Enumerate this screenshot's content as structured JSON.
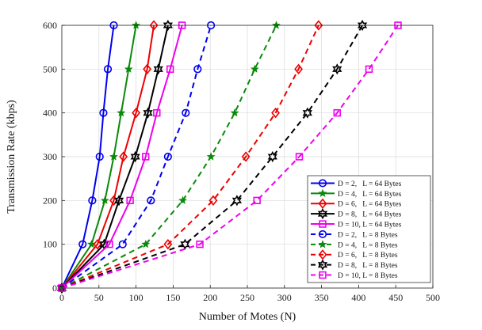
{
  "chart_data": {
    "type": "line",
    "title": "",
    "xlabel": "Number of Motes (N)",
    "ylabel": "Transmission Rate (kbps)",
    "xlim": [
      0,
      500
    ],
    "ylim": [
      0,
      600
    ],
    "xticks": [
      "0",
      "50",
      "100",
      "150",
      "200",
      "250",
      "300",
      "350",
      "400",
      "450",
      "500"
    ],
    "yticks": [
      "0",
      "100",
      "200",
      "300",
      "400",
      "500",
      "600"
    ],
    "grid": true,
    "legend_position": "bottom-right",
    "series": [
      {
        "name": "D = 2,   L = 64 Bytes",
        "color": "#0000ee",
        "marker": "circle",
        "dashed": false,
        "x": [
          0,
          28,
          41,
          51,
          56,
          62,
          70
        ],
        "y": [
          0,
          100,
          200,
          300,
          400,
          500,
          600
        ]
      },
      {
        "name": "D = 4,   L = 64 Bytes",
        "color": "#0a8a0a",
        "marker": "star",
        "dashed": false,
        "x": [
          0,
          40,
          58,
          70,
          80,
          90,
          100
        ],
        "y": [
          0,
          100,
          200,
          300,
          400,
          500,
          600
        ]
      },
      {
        "name": "D = 6,   L = 64 Bytes",
        "color": "#ee0000",
        "marker": "diamond",
        "dashed": false,
        "x": [
          0,
          48,
          70,
          83,
          100,
          115,
          124
        ],
        "y": [
          0,
          100,
          200,
          300,
          400,
          500,
          600
        ]
      },
      {
        "name": "D = 8,   L = 64 Bytes",
        "color": "#000000",
        "marker": "hexagram",
        "dashed": false,
        "x": [
          0,
          57,
          77,
          99,
          116,
          130,
          143
        ],
        "y": [
          0,
          100,
          200,
          300,
          400,
          500,
          600
        ]
      },
      {
        "name": "D = 10, L = 64 Bytes",
        "color": "#ee00ee",
        "marker": "square",
        "dashed": false,
        "x": [
          0,
          64,
          92,
          113,
          128,
          146,
          162
        ],
        "y": [
          0,
          100,
          200,
          300,
          400,
          500,
          600
        ]
      },
      {
        "name": "D = 2,   L = 8 Bytes",
        "color": "#0000ee",
        "marker": "circle",
        "dashed": true,
        "x": [
          0,
          82,
          120,
          143,
          167,
          183,
          201
        ],
        "y": [
          0,
          100,
          200,
          300,
          400,
          500,
          600
        ]
      },
      {
        "name": "D = 4,   L = 8 Bytes",
        "color": "#0a8a0a",
        "marker": "star",
        "dashed": true,
        "x": [
          0,
          113,
          163,
          201,
          233,
          260,
          289
        ],
        "y": [
          0,
          100,
          200,
          300,
          400,
          500,
          600
        ]
      },
      {
        "name": "D = 6,   L = 8 Bytes",
        "color": "#ee0000",
        "marker": "diamond",
        "dashed": true,
        "x": [
          0,
          143,
          204,
          248,
          288,
          319,
          346
        ],
        "y": [
          0,
          100,
          200,
          300,
          400,
          500,
          600
        ]
      },
      {
        "name": "D = 8,   L = 8 Bytes",
        "color": "#000000",
        "marker": "hexagram",
        "dashed": true,
        "x": [
          0,
          166,
          236,
          284,
          331,
          371,
          405
        ],
        "y": [
          0,
          100,
          200,
          300,
          400,
          500,
          600
        ]
      },
      {
        "name": "D = 10, L = 8 Bytes",
        "color": "#ee00ee",
        "marker": "square",
        "dashed": true,
        "x": [
          0,
          186,
          263,
          320,
          371,
          414,
          453
        ],
        "y": [
          0,
          100,
          200,
          300,
          400,
          500,
          600
        ]
      }
    ]
  }
}
